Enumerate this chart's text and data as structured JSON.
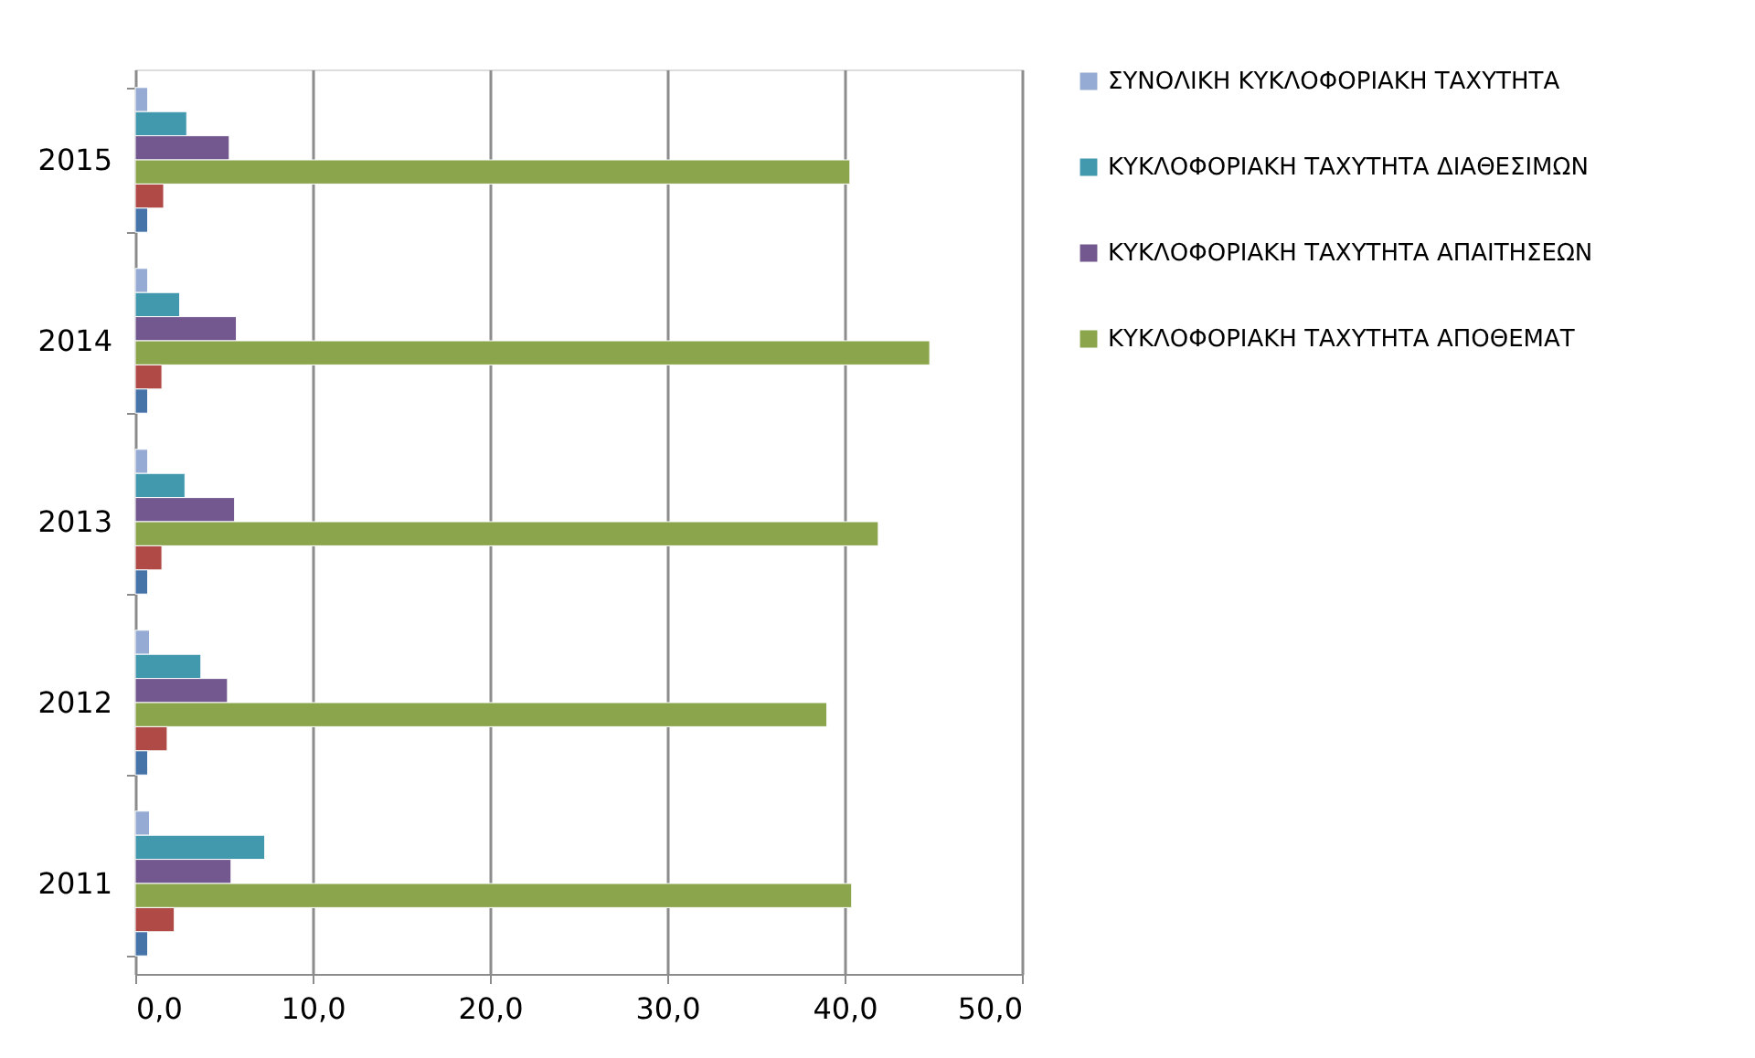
{
  "chart_data": {
    "type": "bar",
    "orientation": "horizontal",
    "categories": [
      "2015",
      "2014",
      "2013",
      "2012",
      "2011"
    ],
    "series": [
      {
        "name": "ΣΥΝΟΛΙΚΗ ΚΥΚΛΟΦΟΡΙΑΚΗ ΤΑΧΥΤΗΤΑ",
        "color": "#95abd3",
        "values": [
          0.7,
          0.7,
          0.7,
          0.8,
          0.8
        ]
      },
      {
        "name": "ΚΥΚΛΟΦΟΡΙΑΚΗ ΤΑΧΥΤΗΤΑ ΔΙΑΘΕΣΙΜΩΝ",
        "color": "#4298ad",
        "values": [
          2.9,
          2.5,
          2.8,
          3.7,
          7.3
        ]
      },
      {
        "name": "ΚΥΚΛΟΦΟΡΙΑΚΗ ΤΑΧΥΤΗΤΑ ΑΠΑΙΤΗΣΕΩΝ",
        "color": "#72588f",
        "values": [
          5.3,
          5.7,
          5.6,
          5.2,
          5.4
        ]
      },
      {
        "name": "ΚΥΚΛΟΦΟΡΙΑΚΗ ΤΑΧΥΤΗΤΑ ΑΠΟΘΕΜΑΤ",
        "color": "#8aa54c",
        "values": [
          40.3,
          44.8,
          41.9,
          39.0,
          40.4
        ]
      },
      {
        "color": "#b04a47",
        "values": [
          1.6,
          1.5,
          1.5,
          1.8,
          2.2
        ]
      },
      {
        "color": "#4673a8",
        "values": [
          0.7,
          0.7,
          0.7,
          0.7,
          0.7
        ]
      }
    ],
    "xlim": [
      0,
      50
    ],
    "xticks": [
      {
        "value": 0,
        "label": "0,0"
      },
      {
        "value": 10,
        "label": "10,0"
      },
      {
        "value": 20,
        "label": "20,0"
      },
      {
        "value": 30,
        "label": "30,0"
      },
      {
        "value": 40,
        "label": "40,0"
      },
      {
        "value": 50,
        "label": "50,0"
      }
    ],
    "grid": "x",
    "legend": "right"
  }
}
